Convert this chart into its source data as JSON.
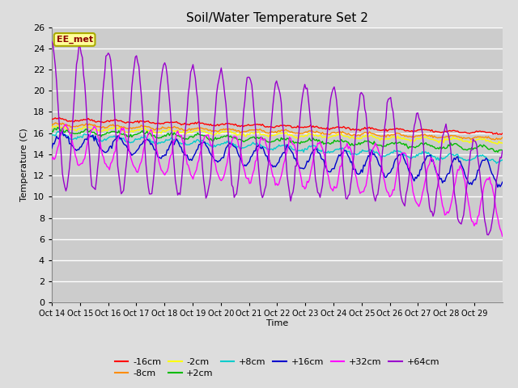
{
  "title": "Soil/Water Temperature Set 2",
  "xlabel": "Time",
  "ylabel": "Temperature (C)",
  "annotation_text": "EE_met",
  "ylim": [
    0,
    26
  ],
  "yticks": [
    0,
    2,
    4,
    6,
    8,
    10,
    12,
    14,
    16,
    18,
    20,
    22,
    24,
    26
  ],
  "xtick_labels": [
    "Oct 14",
    "Oct 15",
    "Oct 16",
    "Oct 17",
    "Oct 18",
    "Oct 19",
    "Oct 20",
    "Oct 21",
    "Oct 22",
    "Oct 23",
    "Oct 24",
    "Oct 25",
    "Oct 26",
    "Oct 27",
    "Oct 28",
    "Oct 29"
  ],
  "series": {
    "-16cm": {
      "color": "#FF0000",
      "linewidth": 1.0
    },
    "-8cm": {
      "color": "#FF8C00",
      "linewidth": 1.0
    },
    "-2cm": {
      "color": "#FFFF00",
      "linewidth": 1.0
    },
    "+2cm": {
      "color": "#00BB00",
      "linewidth": 1.0
    },
    "+8cm": {
      "color": "#00CCCC",
      "linewidth": 1.0
    },
    "+16cm": {
      "color": "#0000CC",
      "linewidth": 1.0
    },
    "+32cm": {
      "color": "#FF00FF",
      "linewidth": 1.0
    },
    "+64cm": {
      "color": "#9900CC",
      "linewidth": 1.0
    }
  },
  "background_color": "#DDDDDD",
  "plot_bg_color": "#CCCCCC",
  "grid_color": "#FFFFFF",
  "figsize": [
    6.4,
    4.8
  ],
  "dpi": 100,
  "legend_row1": [
    "-16cm",
    "-8cm",
    "-2cm",
    "+2cm",
    "+8cm",
    "+16cm"
  ],
  "legend_row2": [
    "+32cm",
    "+64cm"
  ]
}
